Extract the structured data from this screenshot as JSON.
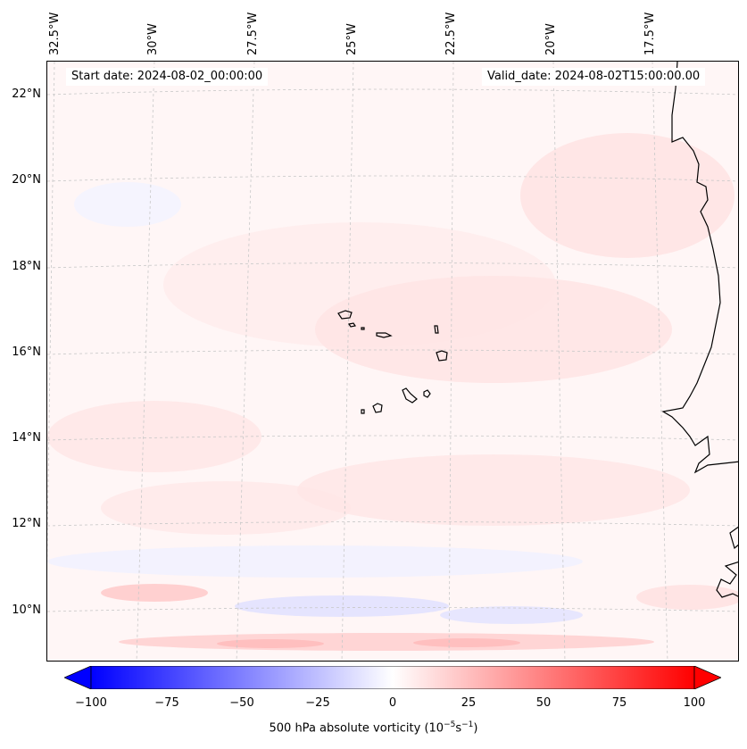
{
  "header": {
    "start_date": "Start date: 2024-08-02_00:00:00",
    "valid_date": "Valid_date: 2024-08-02T15:00:00.00"
  },
  "axes": {
    "longitude_labels": [
      "32.5°W",
      "30°W",
      "27.5°W",
      "25°W",
      "22.5°W",
      "20°W",
      "17.5°W"
    ],
    "latitude_labels": [
      "22°N",
      "20°N",
      "18°N",
      "16°N",
      "14°N",
      "12°N",
      "10°N"
    ]
  },
  "colorbar": {
    "ticks": [
      "−100",
      "−75",
      "−50",
      "−25",
      "0",
      "25",
      "50",
      "75",
      "100"
    ],
    "label_main": "500 hPa absolute vorticity (10",
    "label_exp1": "−5",
    "label_mid": "s",
    "label_exp2": "−1",
    "label_end": ")",
    "range": [
      -100,
      100
    ],
    "low_color": "#0000ff",
    "mid_color": "#ffffff",
    "high_color": "#ff0000"
  },
  "map": {
    "ocean_tint": "#fff6f6",
    "coastline_color": "#000000",
    "gridline_color": "#c8c8c8"
  }
}
